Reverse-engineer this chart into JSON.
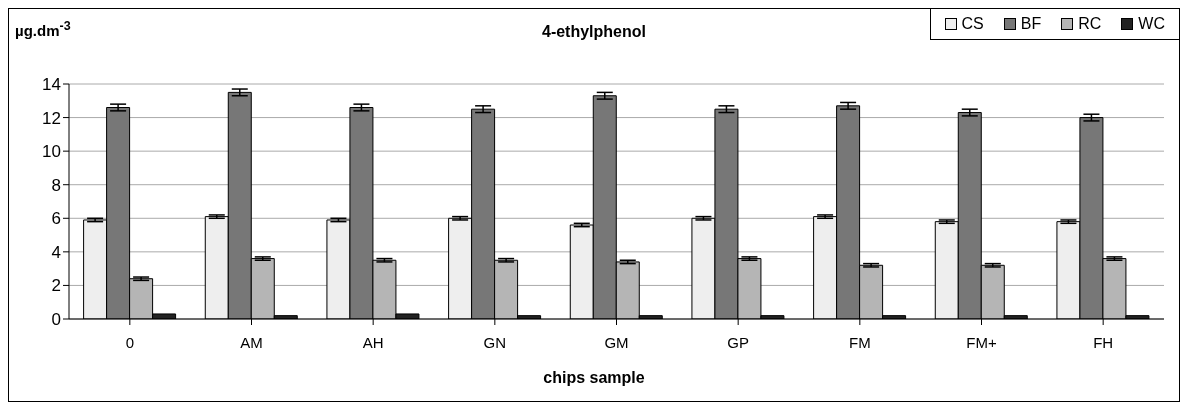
{
  "chart_data": {
    "type": "bar",
    "title": "4-ethylphenol",
    "ylabel": "µg.dm$^{-3}$",
    "xlabel": "chips sample",
    "categories": [
      "0",
      "AM",
      "AH",
      "GN",
      "GM",
      "GP",
      "FM",
      "FM+",
      "FH"
    ],
    "series": [
      {
        "name": "CS",
        "color": "#eeeeee",
        "values": [
          5.9,
          6.1,
          5.9,
          6.0,
          5.6,
          6.0,
          6.1,
          5.8,
          5.8
        ],
        "errors": [
          0.1,
          0.1,
          0.1,
          0.1,
          0.1,
          0.1,
          0.1,
          0.1,
          0.1
        ]
      },
      {
        "name": "BF",
        "color": "#777777",
        "values": [
          12.6,
          13.5,
          12.6,
          12.5,
          13.3,
          12.5,
          12.7,
          12.3,
          12.0
        ],
        "errors": [
          0.2,
          0.2,
          0.2,
          0.2,
          0.2,
          0.2,
          0.2,
          0.2,
          0.2
        ]
      },
      {
        "name": "RC",
        "color": "#b5b5b5",
        "values": [
          2.4,
          3.6,
          3.5,
          3.5,
          3.4,
          3.6,
          3.2,
          3.2,
          3.6
        ],
        "errors": [
          0.1,
          0.1,
          0.1,
          0.1,
          0.1,
          0.1,
          0.1,
          0.1,
          0.1
        ]
      },
      {
        "name": "WC",
        "color": "#222222",
        "values": [
          0.3,
          0.2,
          0.3,
          0.2,
          0.2,
          0.2,
          0.2,
          0.2,
          0.2
        ]
      }
    ],
    "ylim": [
      0,
      14
    ],
    "yticks": [
      0,
      2,
      4,
      6,
      8,
      10,
      12,
      14
    ],
    "grid": "y",
    "legend": "top right"
  }
}
